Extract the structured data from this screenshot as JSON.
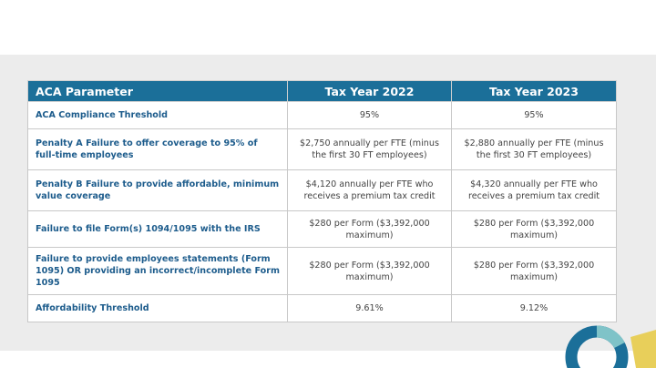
{
  "table": {
    "headers": [
      "ACA Parameter",
      "Tax Year 2022",
      "Tax Year 2023"
    ],
    "rows": [
      [
        "ACA Compliance Threshold",
        "95%",
        "95%"
      ],
      [
        "Penalty A Failure to offer coverage to 95% of full-time employees",
        "$2,750 annually per FTE (minus the first 30 FT employees)",
        "$2,880 annually per FTE (minus the first 30 FT employees)"
      ],
      [
        "Penalty B Failure to provide affordable, minimum value coverage",
        "$4,120 annually per FTE who receives a premium tax credit",
        "$4,320 annually per FTE who receives a premium tax credit"
      ],
      [
        "Failure to file Form(s) 1094/1095 with the IRS",
        "$280 per Form ($3,392,000 maximum)",
        "$280 per Form ($3,392,000 maximum)"
      ],
      [
        "Failure to provide employees statements (Form 1095) OR providing an incorrect/incomplete Form 1095",
        "$280 per Form ($3,392,000 maximum)",
        "$280 per Form ($3,392,000 maximum)"
      ],
      [
        "Affordability Threshold",
        "9.61%",
        "9.12%"
      ]
    ]
  }
}
